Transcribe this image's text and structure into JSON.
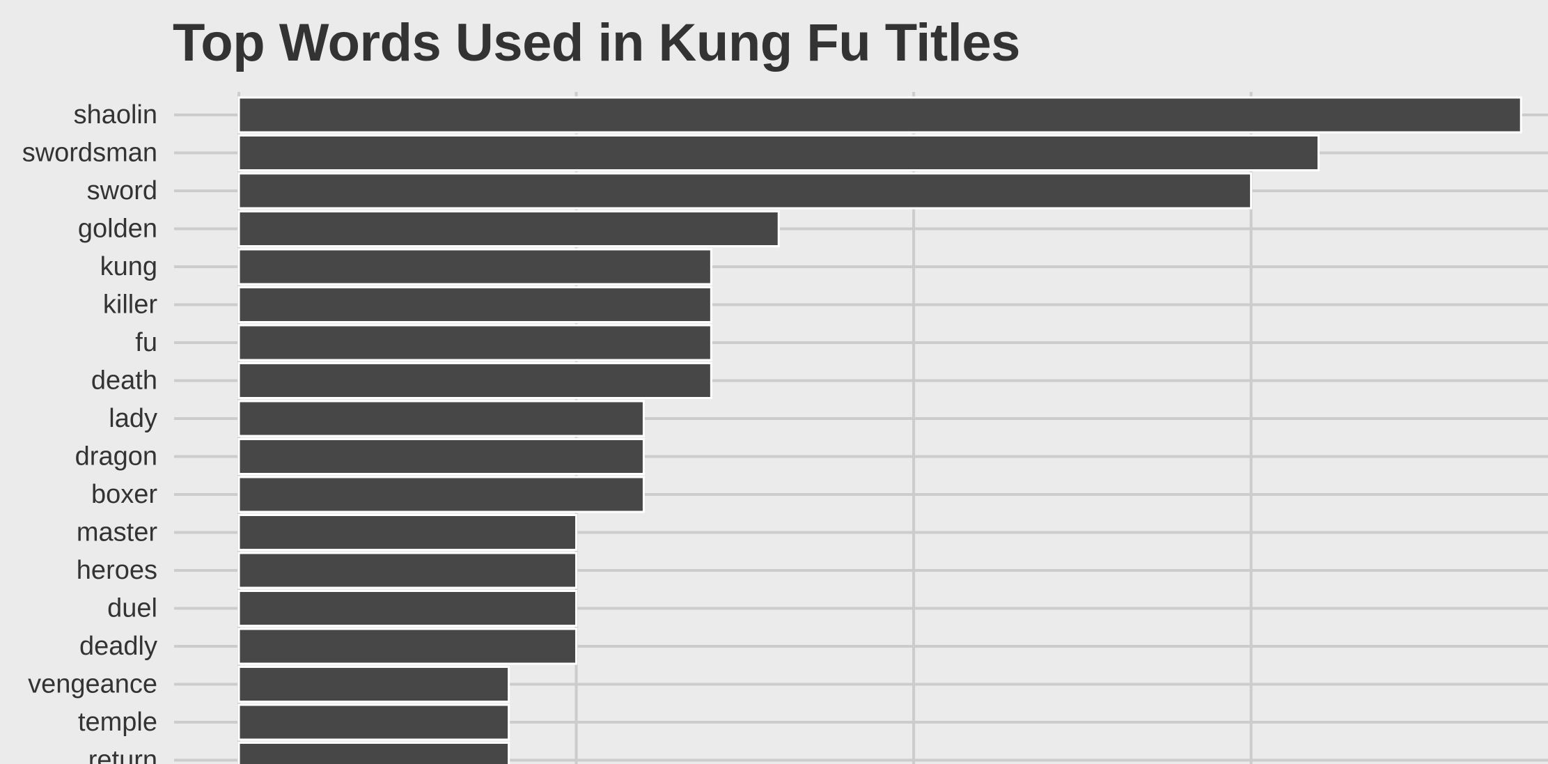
{
  "chart_data": {
    "type": "bar",
    "orientation": "horizontal",
    "title": "Top Words Used in Kung Fu Titles",
    "xlabel": "",
    "ylabel": "",
    "categories": [
      "shaolin",
      "swordsman",
      "sword",
      "golden",
      "kung",
      "killer",
      "fu",
      "death",
      "lady",
      "dragon",
      "boxer",
      "master",
      "heroes",
      "duel",
      "deadly",
      "vengeance",
      "temple",
      "return"
    ],
    "values": [
      19,
      16,
      15,
      8,
      7,
      7,
      7,
      7,
      6,
      6,
      6,
      5,
      5,
      5,
      5,
      4,
      4,
      4
    ],
    "xlim": [
      0,
      19.4
    ],
    "x_gridlines": [
      0,
      5,
      10,
      15
    ],
    "grid": true,
    "legend": "none",
    "colors": {
      "background": "#ebebeb",
      "bar": "#474747",
      "bar_edge": "#ffffff",
      "grid": "#cccccc",
      "text": "#333333"
    }
  }
}
